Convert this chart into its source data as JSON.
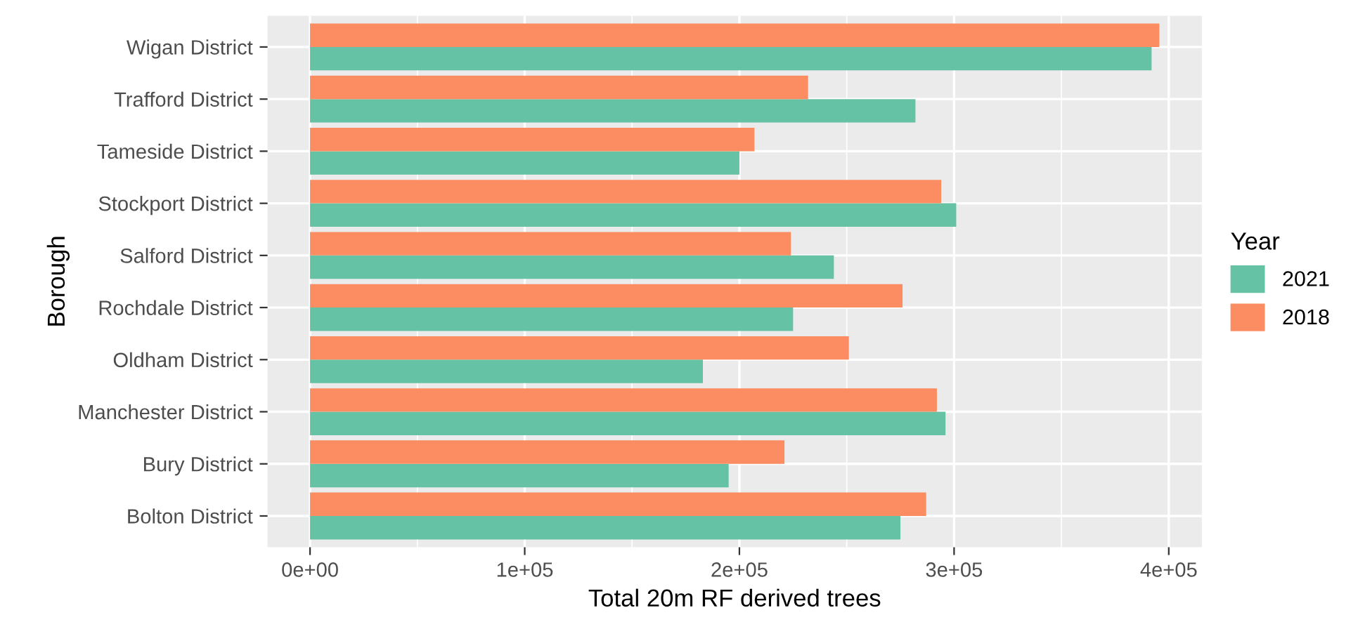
{
  "chart_data": {
    "type": "bar",
    "orientation": "horizontal",
    "xlabel": "Total 20m RF derived trees",
    "ylabel": "Borough",
    "legend_title": "Year",
    "legend": "right",
    "grid": true,
    "categories": [
      "Wigan District",
      "Trafford District",
      "Tameside District",
      "Stockport District",
      "Salford District",
      "Rochdale District",
      "Oldham District",
      "Manchester District",
      "Bury District",
      "Bolton District"
    ],
    "series": [
      {
        "name": "2021",
        "color": "#66c2a5",
        "values": [
          392000,
          282000,
          200000,
          301000,
          244000,
          225000,
          183000,
          296000,
          195000,
          275000
        ]
      },
      {
        "name": "2018",
        "color": "#fc8d62",
        "values": [
          395600,
          232000,
          207000,
          294000,
          224000,
          276000,
          251000,
          292000,
          221000,
          287000
        ]
      }
    ],
    "xlim": [
      -19800,
      415400
    ],
    "xticks": [
      {
        "value": 0,
        "label": "0e+00"
      },
      {
        "value": 100000,
        "label": "1e+05"
      },
      {
        "value": 200000,
        "label": "2e+05"
      },
      {
        "value": 300000,
        "label": "3e+05"
      },
      {
        "value": 400000,
        "label": "4e+05"
      }
    ]
  }
}
